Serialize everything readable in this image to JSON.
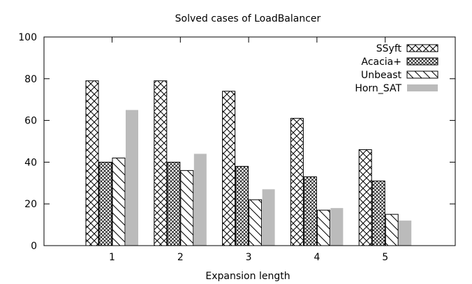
{
  "chart_data": {
    "type": "bar",
    "title": "Solved cases of LoadBalancer",
    "xlabel": "Expansion length",
    "ylabel": "",
    "ylim": [
      0,
      100
    ],
    "yticks": [
      0,
      20,
      40,
      60,
      80,
      100
    ],
    "categories": [
      "1",
      "2",
      "3",
      "4",
      "5"
    ],
    "series": [
      {
        "name": "SSyft",
        "values": [
          79,
          79,
          74,
          61,
          46
        ],
        "pattern": "cross-hatch"
      },
      {
        "name": "Acacia+",
        "values": [
          40,
          40,
          38,
          33,
          31
        ],
        "pattern": "fine-crosshatch"
      },
      {
        "name": "Unbeast",
        "values": [
          42,
          36,
          22,
          17,
          15
        ],
        "pattern": "backslash-hatch"
      },
      {
        "name": "Horn_SAT",
        "values": [
          65,
          44,
          27,
          18,
          12
        ],
        "pattern": "solid-gray",
        "color": "#bbbbbb"
      }
    ],
    "grid": false,
    "legend_position": "top-right"
  }
}
